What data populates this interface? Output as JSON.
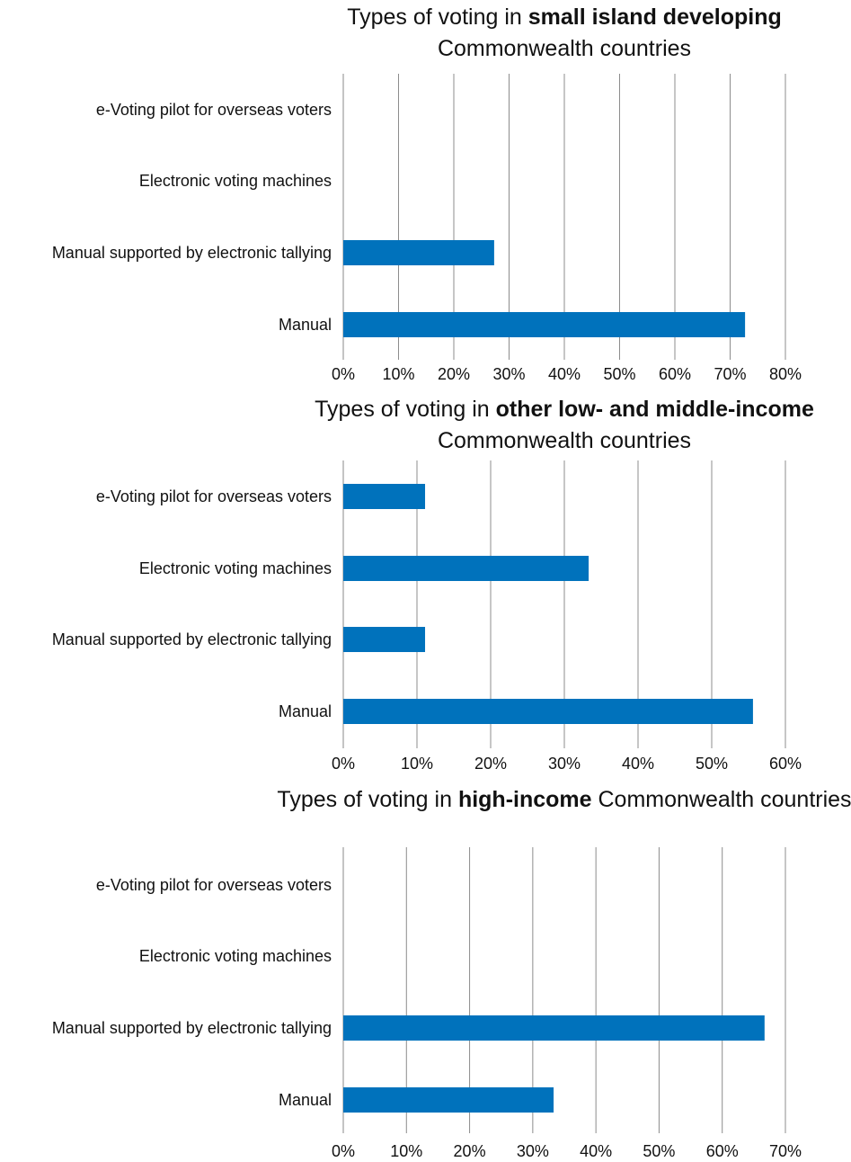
{
  "chart_data": [
    {
      "type": "bar",
      "orientation": "horizontal",
      "title": {
        "pre": "Types of voting in ",
        "bold": "small island developing",
        "post": " Commonwealth countries"
      },
      "categories": [
        "e-Voting pilot for overseas voters",
        "Electronic voting machines",
        "Manual supported by electronic tallying",
        "Manual"
      ],
      "values": [
        0,
        0,
        27.3,
        72.7
      ],
      "unit": "%",
      "xlim": [
        0,
        80
      ],
      "xticks": [
        0,
        10,
        20,
        30,
        40,
        50,
        60,
        70,
        80
      ],
      "grid": true,
      "color": "#0072BC"
    },
    {
      "type": "bar",
      "orientation": "horizontal",
      "title": {
        "pre": "Types of voting in ",
        "bold": "other low- and middle-income",
        "post": " Commonwealth countries"
      },
      "categories": [
        "e-Voting pilot for overseas voters",
        "Electronic voting machines",
        "Manual supported by electronic tallying",
        "Manual"
      ],
      "values": [
        11.1,
        33.3,
        11.1,
        55.6
      ],
      "unit": "%",
      "xlim": [
        0,
        60
      ],
      "xticks": [
        0,
        10,
        20,
        30,
        40,
        50,
        60
      ],
      "grid": true,
      "color": "#0072BC"
    },
    {
      "type": "bar",
      "orientation": "horizontal",
      "title": {
        "pre": "Types of voting in ",
        "bold": "high-income",
        "post": " Commonwealth countries"
      },
      "categories": [
        "e-Voting pilot for overseas voters",
        "Electronic voting machines",
        "Manual supported by electronic tallying",
        "Manual"
      ],
      "values": [
        0,
        0,
        66.7,
        33.3
      ],
      "unit": "%",
      "xlim": [
        0,
        70
      ],
      "xticks": [
        0,
        10,
        20,
        30,
        40,
        50,
        60,
        70
      ],
      "grid": true,
      "color": "#0072BC"
    }
  ]
}
